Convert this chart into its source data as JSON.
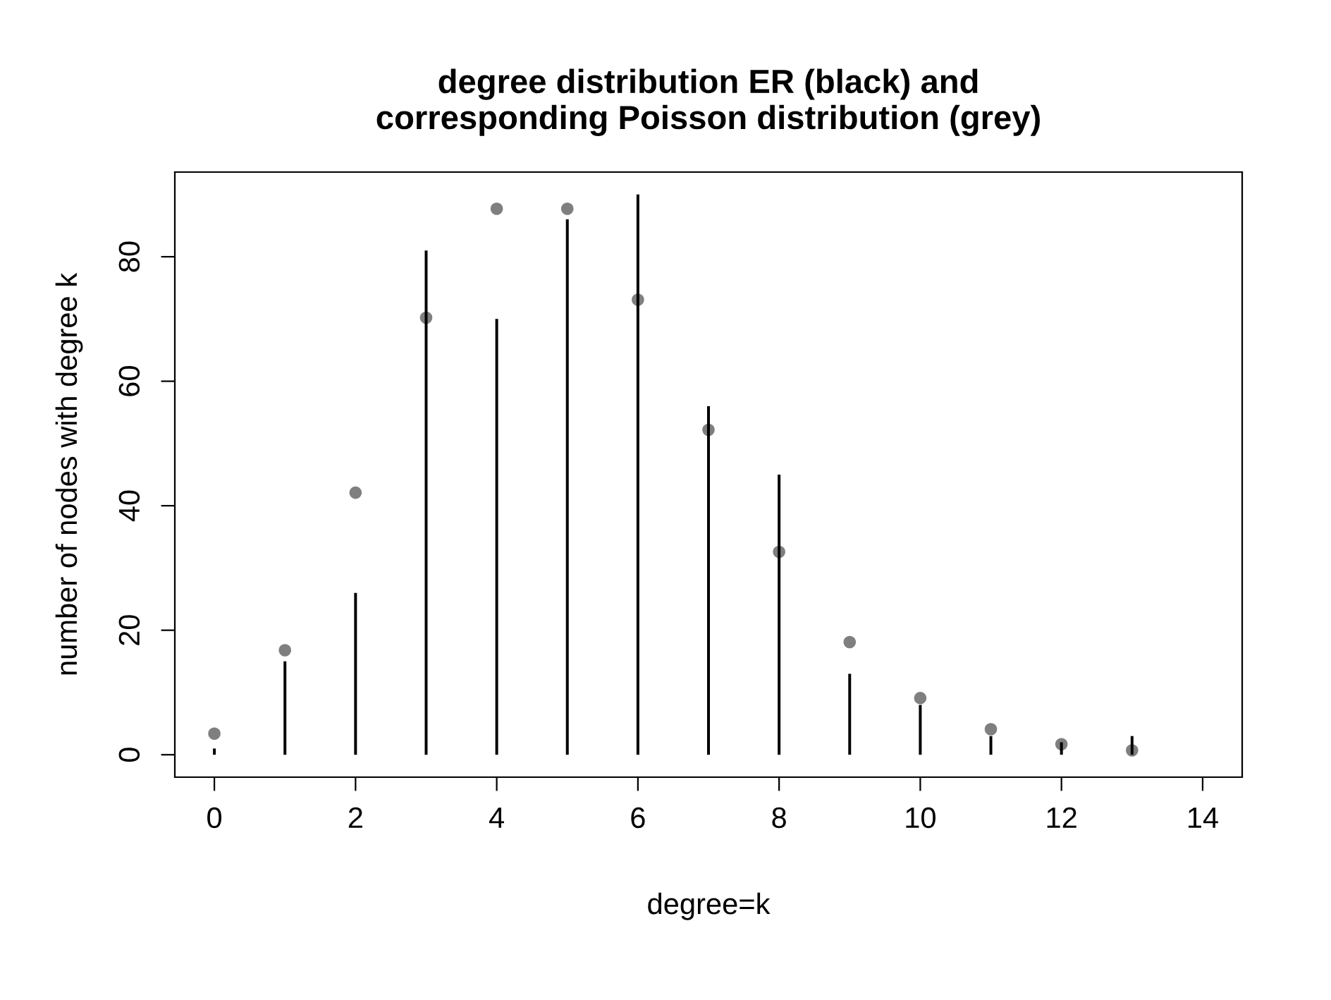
{
  "chart_data": {
    "type": "bar",
    "title": "degree distribution ER (black) and\ncorresponding Poisson distribution (grey)",
    "xlabel": "degree=k",
    "ylabel": "number of nodes with degree k",
    "x": [
      0,
      1,
      2,
      3,
      4,
      5,
      6,
      7,
      8,
      9,
      10,
      11,
      12,
      13
    ],
    "series": [
      {
        "color": "#000000",
        "values": [
          1,
          15,
          26,
          81,
          70,
          86,
          90,
          56,
          45,
          13,
          8,
          3,
          2,
          3
        ]
      },
      {
        "type": "scatter",
        "color": "#7f7f7f",
        "marker": "circle",
        "values": [
          3.4,
          16.8,
          42.1,
          70.2,
          87.7,
          87.7,
          73.1,
          52.2,
          32.6,
          18.1,
          9.1,
          4.1,
          1.7,
          0.7
        ]
      }
    ],
    "xlim": [
      -0.56,
      14.56
    ],
    "xticks": [
      0,
      2,
      4,
      6,
      8,
      10,
      12,
      14
    ],
    "ylim": [
      -3.6,
      93.6
    ],
    "yticks": [
      0,
      20,
      40,
      60,
      80
    ],
    "grid": false
  }
}
